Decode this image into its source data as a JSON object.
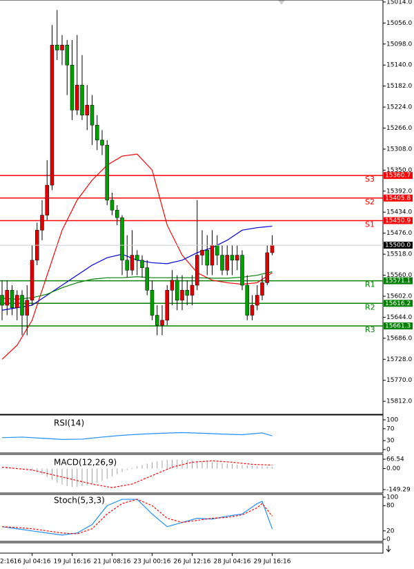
{
  "chart_data": [
    {
      "type": "candlestick",
      "up_color": "#00a000",
      "down_color": "#e00000",
      "open": [
        15600,
        15620,
        15590,
        15625,
        15600,
        15640,
        15610,
        15530,
        15470,
        15440,
        15380,
        15100,
        15110,
        15100,
        15140,
        15230,
        15180,
        15240,
        15220,
        15260,
        15290,
        15300,
        15410,
        15430,
        15445,
        15530,
        15550,
        15520,
        15530,
        15545,
        15590,
        15640,
        15660,
        15650,
        15590,
        15570,
        15610,
        15590,
        15600,
        15580,
        15520,
        15510,
        15540,
        15500,
        15520,
        15550,
        15520,
        15530,
        15520,
        15580,
        15640,
        15620,
        15600,
        15575,
        15515
      ],
      "high": [
        15650,
        15640,
        15640,
        15650,
        15680,
        15680,
        15620,
        15540,
        15490,
        15450,
        15390,
        15130,
        15140,
        15200,
        15250,
        15240,
        15250,
        15270,
        15300,
        15310,
        15320,
        15420,
        15440,
        15460,
        15560,
        15565,
        15560,
        15560,
        15565,
        15600,
        15650,
        15680,
        15680,
        15660,
        15620,
        15630,
        15630,
        15620,
        15620,
        15590,
        15540,
        15560,
        15560,
        15540,
        15560,
        15560,
        15560,
        15550,
        15590,
        15650,
        15650,
        15630,
        15610,
        15580,
        15520
      ],
      "low": [
        15570,
        15570,
        15580,
        15590,
        15590,
        15580,
        15500,
        15455,
        15410,
        15330,
        15060,
        15030,
        15080,
        15090,
        15090,
        15080,
        15120,
        15180,
        15200,
        15240,
        15270,
        15290,
        15395,
        15420,
        15440,
        15480,
        15470,
        15510,
        15520,
        15530,
        15570,
        15620,
        15620,
        15580,
        15550,
        15560,
        15560,
        15570,
        15560,
        15410,
        15470,
        15480,
        15470,
        15480,
        15500,
        15500,
        15500,
        15500,
        15510,
        15560,
        15600,
        15580,
        15560,
        15500,
        15480
      ],
      "close": [
        15620,
        15590,
        15625,
        15600,
        15640,
        15610,
        15530,
        15470,
        15440,
        15380,
        15100,
        15110,
        15100,
        15140,
        15230,
        15180,
        15240,
        15220,
        15260,
        15290,
        15300,
        15410,
        15430,
        15445,
        15530,
        15550,
        15520,
        15530,
        15545,
        15590,
        15640,
        15660,
        15650,
        15590,
        15570,
        15610,
        15590,
        15600,
        15580,
        15520,
        15510,
        15540,
        15500,
        15520,
        15550,
        15520,
        15530,
        15520,
        15580,
        15640,
        15620,
        15600,
        15575,
        15515,
        15500
      ],
      "lines": [
        {
          "color": "#ff0000",
          "x": [
            0,
            3,
            6,
            9,
            12,
            15,
            18,
            21,
            24,
            27,
            30,
            33,
            36,
            39,
            42,
            45,
            48,
            51,
            54
          ],
          "values": [
            15728,
            15700,
            15650,
            15560,
            15470,
            15410,
            15370,
            15340,
            15322,
            15318,
            15350,
            15460,
            15520,
            15555,
            15570,
            15575,
            15578,
            15575,
            15555
          ]
        },
        {
          "color": "#0000dd",
          "x": [
            0,
            3,
            6,
            9,
            12,
            15,
            18,
            21,
            24,
            27,
            30,
            33,
            36,
            39,
            42,
            45,
            48,
            51,
            54
          ],
          "values": [
            15630,
            15625,
            15620,
            15600,
            15580,
            15560,
            15540,
            15525,
            15518,
            15530,
            15535,
            15537,
            15530,
            15515,
            15505,
            15490,
            15470,
            15465,
            15462
          ]
        },
        {
          "color": "#008000",
          "x": [
            0,
            3,
            6,
            9,
            12,
            15,
            18,
            21,
            24,
            27,
            30,
            33,
            36,
            39,
            42,
            45,
            48,
            51,
            54
          ],
          "values": [
            15606,
            15608,
            15605,
            15598,
            15585,
            15575,
            15568,
            15565,
            15565,
            15563,
            15565,
            15565,
            15565,
            15565,
            15566,
            15566,
            15564,
            15560,
            15553
          ]
        }
      ],
      "levels": [
        {
          "name": "R3",
          "value": 15661.3,
          "color": "#008000"
        },
        {
          "name": "R2",
          "value": 15616.2,
          "color": "#008000"
        },
        {
          "name": "R1",
          "value": 15571.1,
          "color": "#008000"
        },
        {
          "name": "S1",
          "value": 15450.9,
          "color": "#ff0000"
        },
        {
          "name": "S2",
          "value": 15405.8,
          "color": "#ff0000"
        },
        {
          "name": "S3",
          "value": 15360.7,
          "color": "#ff0000"
        }
      ],
      "last": {
        "value": 15500,
        "label": "15500.0"
      },
      "ylim": [
        15010,
        15838
      ],
      "yticks": [
        {
          "value": 15812,
          "label": "15812.0"
        },
        {
          "value": 15770,
          "label": "15770.0"
        },
        {
          "value": 15728,
          "label": "15728.0"
        },
        {
          "value": 15686,
          "label": "15686.0"
        },
        {
          "value": 15644,
          "label": "15644.0"
        },
        {
          "value": 15602,
          "label": "15602.0"
        },
        {
          "value": 15560,
          "label": "15560.0"
        },
        {
          "value": 15518,
          "label": "15518.0"
        },
        {
          "value": 15476,
          "label": "15476.0"
        },
        {
          "value": 15434,
          "label": "15434.0"
        },
        {
          "value": 15392,
          "label": "15392.0"
        },
        {
          "value": 15350,
          "label": "15350.0"
        },
        {
          "value": 15308,
          "label": "15308.0"
        },
        {
          "value": 15266,
          "label": "15266.0"
        },
        {
          "value": 15224,
          "label": "15224.0"
        },
        {
          "value": 15182,
          "label": "15182.0"
        },
        {
          "value": 15140,
          "label": "15140.0"
        },
        {
          "value": 15098,
          "label": "15098.0"
        },
        {
          "value": 15056,
          "label": "15056.0"
        },
        {
          "value": 15014,
          "label": "15014.0"
        }
      ],
      "xticks": [
        {
          "value": -1.5,
          "label": "2:16"
        },
        {
          "value": 6,
          "label": "16 Jul 04:16"
        },
        {
          "value": 14,
          "label": "19 Jul 16:16"
        },
        {
          "value": 22,
          "label": "21 Jul 08:16"
        },
        {
          "value": 30,
          "label": "23 Jul 00:16"
        },
        {
          "value": 38,
          "label": "26 Jul 12:16"
        },
        {
          "value": 46,
          "label": "28 Jul 04:16"
        },
        {
          "value": 54,
          "label": "29 Jul 16:16"
        }
      ]
    },
    {
      "type": "line",
      "title": "RSI(14)",
      "ylim": [
        0,
        100
      ],
      "yticks": [
        100,
        70,
        30,
        0
      ],
      "series": [
        {
          "color": "#1e90ff",
          "x": [
            0,
            4,
            8,
            12,
            16,
            20,
            24,
            28,
            32,
            36,
            40,
            44,
            48,
            52,
            54
          ],
          "values": [
            40,
            42,
            38,
            34,
            35,
            42,
            48,
            52,
            55,
            57,
            55,
            52,
            50,
            56,
            46
          ]
        }
      ]
    },
    {
      "type": "combo",
      "title": "MACD(12,26,9)",
      "ylim": [
        -149.29,
        66.54
      ],
      "yticks": [
        66.54,
        {
          "value": 0,
          "label": "0.00"
        },
        -149.29
      ],
      "series": [
        {
          "type": "bar",
          "color": "#a0a0a0",
          "values": [
            10,
            8,
            5,
            0,
            -5,
            -10,
            -15,
            -25,
            -40,
            -60,
            -80,
            -100,
            -115,
            -125,
            -130,
            -130,
            -125,
            -118,
            -110,
            -100,
            -88,
            -72,
            -55,
            -40,
            -25,
            -10,
            5,
            15,
            25,
            35,
            45,
            52,
            58,
            62,
            64,
            64,
            62,
            60,
            58,
            55,
            52,
            48,
            45,
            42,
            38,
            35,
            32,
            28,
            25,
            22,
            20,
            18,
            16,
            14,
            12
          ]
        },
        {
          "type": "line",
          "color": "#ff0000",
          "dashed": true,
          "x": [
            0,
            6,
            12,
            18,
            22,
            26,
            30,
            34,
            38,
            42,
            46,
            50,
            54
          ],
          "values": [
            10,
            -10,
            -60,
            -110,
            -135,
            -110,
            -50,
            10,
            45,
            55,
            45,
            30,
            25
          ]
        }
      ]
    },
    {
      "type": "line",
      "title": "Stoch(5,3,3)",
      "ylim": [
        0,
        100
      ],
      "yticks": [
        100,
        80,
        20,
        0
      ],
      "series": [
        {
          "color": "#1e90ff",
          "x": [
            0,
            3,
            6,
            9,
            12,
            15,
            18,
            21,
            24,
            27,
            30,
            33,
            36,
            39,
            42,
            45,
            48,
            51,
            52,
            54
          ],
          "values": [
            30,
            25,
            20,
            15,
            10,
            15,
            35,
            80,
            95,
            95,
            60,
            30,
            40,
            50,
            48,
            55,
            60,
            85,
            90,
            25
          ]
        },
        {
          "color": "#ff0000",
          "dashed": true,
          "x": [
            0,
            3,
            6,
            9,
            12,
            15,
            18,
            21,
            24,
            27,
            30,
            33,
            36,
            39,
            42,
            45,
            48,
            51,
            52,
            54
          ],
          "values": [
            30,
            28,
            25,
            20,
            15,
            13,
            25,
            60,
            85,
            95,
            80,
            50,
            40,
            45,
            50,
            52,
            58,
            75,
            85,
            55
          ]
        }
      ]
    }
  ]
}
